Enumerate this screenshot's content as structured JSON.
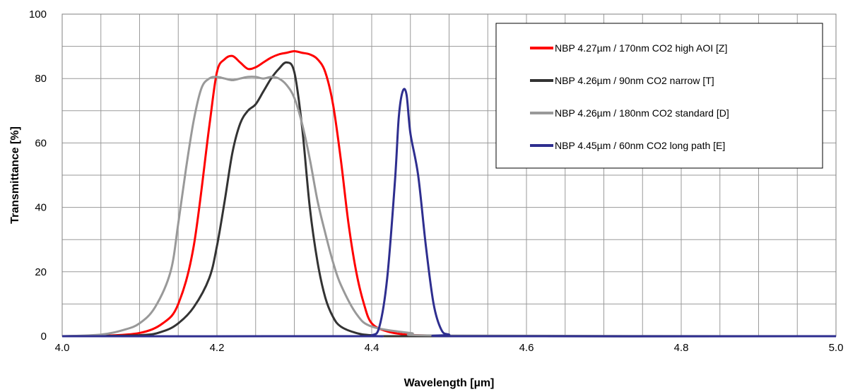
{
  "chart_data": {
    "type": "line",
    "title": "",
    "xlabel": "Wavelength [µm]",
    "ylabel": "Transmittance [%]",
    "xlim": [
      4.0,
      5.0
    ],
    "ylim": [
      0,
      100
    ],
    "x_ticks": [
      "4.0",
      "4.2",
      "4.4",
      "4.6",
      "4.8",
      "5.0"
    ],
    "y_ticks": [
      "0",
      "20",
      "40",
      "60",
      "80",
      "100"
    ],
    "grid": true,
    "legend_position": "top-right",
    "series": [
      {
        "name": "NBP 4.27µm / 170nm CO2 high AOI [Z]",
        "color": "#ff0000",
        "x": [
          4.0,
          4.05,
          4.1,
          4.13,
          4.15,
          4.17,
          4.19,
          4.2,
          4.21,
          4.22,
          4.23,
          4.24,
          4.25,
          4.26,
          4.27,
          4.28,
          4.29,
          4.3,
          4.31,
          4.32,
          4.33,
          4.34,
          4.35,
          4.36,
          4.37,
          4.38,
          4.39,
          4.4,
          4.42,
          4.45,
          4.5,
          4.6,
          5.0
        ],
        "y": [
          0,
          0.1,
          1,
          4,
          10,
          28,
          65,
          82,
          86,
          87,
          85,
          83,
          83.5,
          85,
          86.5,
          87.5,
          88,
          88.5,
          88,
          87.5,
          86,
          82,
          72,
          55,
          35,
          20,
          10,
          4,
          1.5,
          0.4,
          0.1,
          0,
          0
        ]
      },
      {
        "name": "NBP 4.26µm / 90nm CO2 narrow [T]",
        "color": "#333333",
        "x": [
          4.0,
          4.1,
          4.13,
          4.15,
          4.17,
          4.19,
          4.2,
          4.21,
          4.22,
          4.23,
          4.24,
          4.25,
          4.26,
          4.27,
          4.28,
          4.29,
          4.3,
          4.31,
          4.32,
          4.33,
          4.34,
          4.35,
          4.36,
          4.38,
          4.4,
          4.45,
          5.0
        ],
        "y": [
          0,
          0.3,
          1.5,
          4,
          9,
          18,
          28,
          42,
          57,
          66,
          70,
          72,
          76,
          80,
          83,
          85,
          82,
          65,
          40,
          23,
          12,
          6,
          3,
          1,
          0.3,
          0,
          0
        ]
      },
      {
        "name": "NBP 4.26µm / 180nm CO2 standard [D]",
        "color": "#999999",
        "x": [
          4.0,
          4.05,
          4.08,
          4.1,
          4.12,
          4.14,
          4.15,
          4.16,
          4.17,
          4.18,
          4.19,
          4.2,
          4.21,
          4.22,
          4.23,
          4.24,
          4.25,
          4.26,
          4.27,
          4.28,
          4.29,
          4.3,
          4.31,
          4.32,
          4.33,
          4.34,
          4.35,
          4.36,
          4.38,
          4.4,
          4.45,
          4.5,
          5.0
        ],
        "y": [
          0,
          0.5,
          2,
          4,
          9,
          20,
          35,
          52,
          67,
          77,
          80,
          80.5,
          80,
          79.5,
          80,
          80.5,
          80.5,
          80,
          80.5,
          80,
          78,
          74,
          66,
          55,
          42,
          32,
          23,
          16,
          7,
          3,
          1,
          0.2,
          0
        ]
      },
      {
        "name": "NBP 4.45µm / 60nm CO2 long path [E]",
        "color": "#2e2e8f",
        "x": [
          4.0,
          4.38,
          4.4,
          4.41,
          4.42,
          4.43,
          4.435,
          4.44,
          4.445,
          4.45,
          4.46,
          4.47,
          4.48,
          4.49,
          4.5,
          4.52,
          5.0
        ],
        "y": [
          0,
          0,
          0.3,
          3,
          18,
          48,
          68,
          76,
          75,
          63,
          50,
          28,
          10,
          2,
          0.5,
          0,
          0
        ]
      }
    ]
  }
}
